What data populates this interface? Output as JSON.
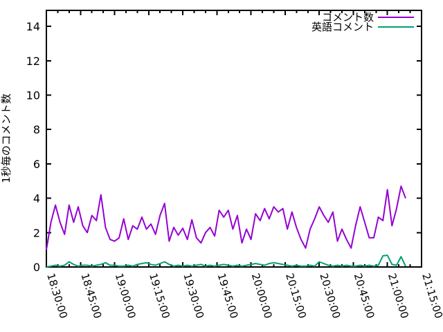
{
  "chart_data": {
    "type": "line",
    "ylabel": "1秒毎のコメント数",
    "background_color": "#ffffff",
    "border_color": "#000000",
    "grid": false,
    "legend_position": "top-right-inside",
    "x_axis": {
      "range_min": [
        0,
        165
      ],
      "major_tick_interval_min": 15,
      "minor_tick_interval_min": 5,
      "tick_labels": [
        "18:30:00",
        "18:45:00",
        "19:00:00",
        "19:15:00",
        "19:30:00",
        "19:45:00",
        "20:00:00",
        "20:15:00",
        "20:30:00",
        "20:45:00",
        "21:00:00",
        "21:15:00"
      ],
      "label_rotation_deg": 73
    },
    "y_axis": {
      "range": [
        0,
        14.93
      ],
      "ticks": [
        0,
        2,
        4,
        6,
        8,
        10,
        12,
        14
      ]
    },
    "x_start_min": 0,
    "x_step_min": 2,
    "series": [
      {
        "id": "comments",
        "name": "コメント数",
        "color": "#9400d3",
        "values": [
          1.0,
          2.6,
          3.6,
          2.6,
          1.9,
          3.6,
          2.6,
          3.5,
          2.4,
          2.0,
          3.0,
          2.7,
          4.2,
          2.3,
          1.6,
          1.5,
          1.7,
          2.8,
          1.6,
          2.4,
          2.2,
          2.9,
          2.2,
          2.5,
          1.9,
          3.0,
          3.7,
          1.5,
          2.3,
          1.85,
          2.25,
          1.6,
          2.75,
          1.7,
          1.4,
          2.0,
          2.3,
          1.8,
          3.3,
          2.9,
          3.3,
          2.2,
          3.0,
          1.4,
          2.2,
          1.6,
          3.1,
          2.7,
          3.4,
          2.8,
          3.5,
          3.2,
          3.4,
          2.2,
          3.2,
          2.3,
          1.6,
          1.1,
          2.2,
          2.8,
          3.5,
          3.0,
          2.6,
          3.2,
          1.5,
          2.2,
          1.6,
          1.1,
          2.4,
          3.5,
          2.6,
          1.7,
          1.7,
          2.9,
          2.7,
          4.5,
          2.4,
          3.4,
          4.7,
          4.0
        ]
      },
      {
        "id": "english-comments",
        "name": "英語コメント",
        "color": "#009e73",
        "values": [
          0.0,
          0.05,
          0.1,
          0.05,
          0.1,
          0.3,
          0.15,
          0.05,
          0.1,
          0.1,
          0.05,
          0.1,
          0.15,
          0.25,
          0.1,
          0.1,
          0.05,
          0.05,
          0.1,
          0.05,
          0.15,
          0.2,
          0.25,
          0.15,
          0.1,
          0.2,
          0.3,
          0.15,
          0.05,
          0.1,
          0.05,
          0.1,
          0.05,
          0.1,
          0.15,
          0.05,
          0.1,
          0.05,
          0.1,
          0.15,
          0.1,
          0.05,
          0.1,
          0.05,
          0.1,
          0.15,
          0.2,
          0.15,
          0.1,
          0.2,
          0.25,
          0.2,
          0.15,
          0.1,
          0.05,
          0.1,
          0.05,
          0.05,
          0.1,
          0.05,
          0.3,
          0.2,
          0.1,
          0.05,
          0.1,
          0.05,
          0.1,
          0.05,
          0.05,
          0.1,
          0.05,
          0.1,
          0.05,
          0.1,
          0.65,
          0.68,
          0.15,
          0.1,
          0.6,
          0.05
        ]
      }
    ]
  }
}
